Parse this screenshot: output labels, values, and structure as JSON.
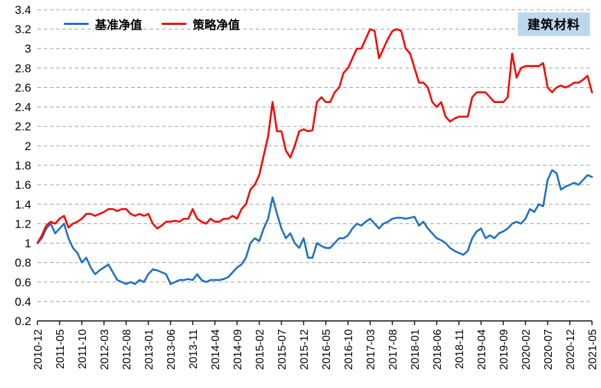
{
  "chart_data": {
    "type": "line",
    "title": "",
    "corner_label": "建筑材料",
    "corner_label_bg": "#bdd7ee",
    "legend_position": "top-left inside plot",
    "grid": "dashed horizontal gridlines",
    "ylim": [
      0.2,
      3.4
    ],
    "y_step": 0.2,
    "y_tick_labels": [
      "0.2",
      "0.4",
      "0.6",
      "0.8",
      "1",
      "1.2",
      "1.4",
      "1.6",
      "1.8",
      "2",
      "2.2",
      "2.4",
      "2.6",
      "2.8",
      "3",
      "3.2",
      "3.4"
    ],
    "x_label_every_n_points": 5,
    "x_tick_labels": [
      "2010-12",
      "2011-05",
      "2011-10",
      "2012-03",
      "2012-08",
      "2013-01",
      "2013-06",
      "2013-11",
      "2014-04",
      "2014-09",
      "2015-02",
      "2015-07",
      "2015-12",
      "2016-05",
      "2016-10",
      "2017-03",
      "2017-08",
      "2018-01",
      "2018-06",
      "2018-11",
      "2019-04",
      "2019-09",
      "2020-02",
      "2020-07",
      "2020-12",
      "2021-05"
    ],
    "series": [
      {
        "name": "基准净值",
        "color": "#1c70c4",
        "values": [
          1.0,
          1.05,
          1.15,
          1.2,
          1.1,
          1.15,
          1.2,
          1.05,
          0.95,
          0.9,
          0.8,
          0.85,
          0.75,
          0.68,
          0.72,
          0.75,
          0.78,
          0.7,
          0.62,
          0.6,
          0.58,
          0.6,
          0.58,
          0.62,
          0.6,
          0.68,
          0.73,
          0.72,
          0.7,
          0.68,
          0.58,
          0.6,
          0.62,
          0.62,
          0.63,
          0.62,
          0.68,
          0.62,
          0.6,
          0.62,
          0.62,
          0.62,
          0.63,
          0.65,
          0.7,
          0.75,
          0.78,
          0.85,
          1.0,
          1.05,
          1.02,
          1.15,
          1.25,
          1.47,
          1.3,
          1.15,
          1.05,
          1.1,
          1.0,
          0.95,
          1.05,
          0.85,
          0.85,
          1.0,
          0.97,
          0.95,
          0.95,
          1.0,
          1.05,
          1.05,
          1.08,
          1.15,
          1.2,
          1.18,
          1.22,
          1.25,
          1.2,
          1.15,
          1.2,
          1.22,
          1.25,
          1.26,
          1.26,
          1.25,
          1.26,
          1.27,
          1.18,
          1.22,
          1.15,
          1.1,
          1.05,
          1.03,
          1.0,
          0.95,
          0.92,
          0.9,
          0.88,
          0.92,
          1.05,
          1.12,
          1.15,
          1.05,
          1.08,
          1.05,
          1.1,
          1.12,
          1.15,
          1.2,
          1.22,
          1.2,
          1.25,
          1.35,
          1.32,
          1.4,
          1.38,
          1.65,
          1.75,
          1.72,
          1.55,
          1.58,
          1.6,
          1.62,
          1.6,
          1.65,
          1.7,
          1.68
        ]
      },
      {
        "name": "策略净值",
        "color": "#fe0000",
        "values": [
          1.0,
          1.08,
          1.18,
          1.22,
          1.2,
          1.25,
          1.28,
          1.16,
          1.2,
          1.22,
          1.25,
          1.3,
          1.3,
          1.28,
          1.3,
          1.32,
          1.35,
          1.35,
          1.33,
          1.35,
          1.35,
          1.3,
          1.28,
          1.3,
          1.28,
          1.3,
          1.2,
          1.15,
          1.18,
          1.22,
          1.22,
          1.23,
          1.22,
          1.25,
          1.25,
          1.35,
          1.25,
          1.22,
          1.2,
          1.25,
          1.22,
          1.22,
          1.25,
          1.25,
          1.28,
          1.25,
          1.35,
          1.4,
          1.55,
          1.6,
          1.7,
          1.9,
          2.1,
          2.45,
          2.15,
          2.15,
          1.95,
          1.88,
          2.0,
          2.15,
          2.17,
          2.15,
          2.16,
          2.45,
          2.5,
          2.45,
          2.45,
          2.55,
          2.6,
          2.75,
          2.8,
          2.9,
          3.0,
          3.0,
          3.1,
          3.2,
          3.18,
          2.9,
          3.0,
          3.1,
          3.18,
          3.2,
          3.18,
          3.0,
          2.95,
          2.8,
          2.65,
          2.65,
          2.6,
          2.45,
          2.4,
          2.45,
          2.3,
          2.25,
          2.28,
          2.3,
          2.3,
          2.3,
          2.5,
          2.55,
          2.55,
          2.55,
          2.5,
          2.45,
          2.45,
          2.45,
          2.5,
          2.95,
          2.7,
          2.8,
          2.82,
          2.82,
          2.82,
          2.82,
          2.85,
          2.6,
          2.55,
          2.6,
          2.62,
          2.6,
          2.62,
          2.65,
          2.65,
          2.68,
          2.72,
          2.55
        ]
      }
    ]
  }
}
